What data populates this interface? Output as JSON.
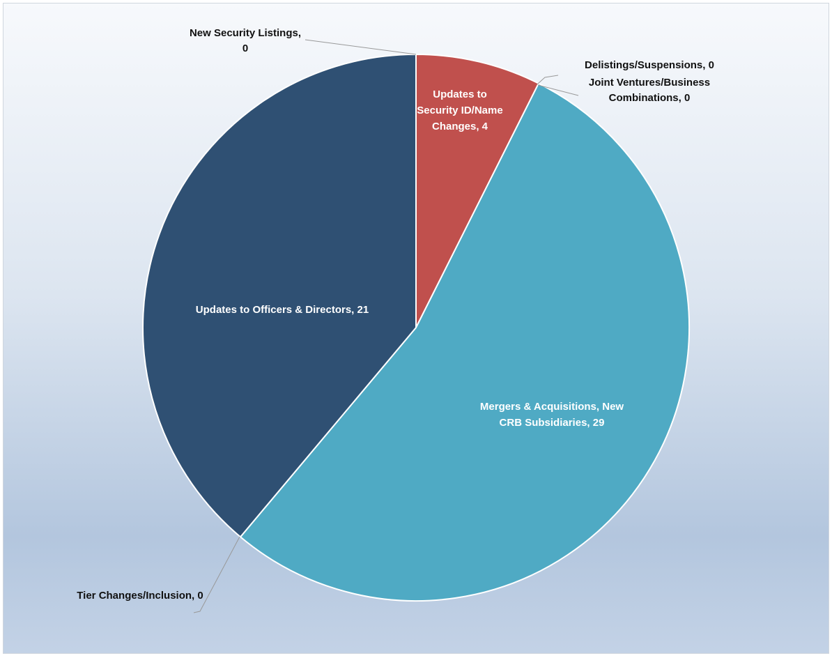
{
  "chart_data": {
    "type": "pie",
    "title": "",
    "slices": [
      {
        "label": "New Security Listings",
        "value": 0,
        "color": "#2f5073"
      },
      {
        "label": "Updates to Security ID/Name Changes",
        "value": 4,
        "color": "#c0504d"
      },
      {
        "label": "Delistings/Suspensions",
        "value": 0,
        "color": "#4aacc6"
      },
      {
        "label": "Joint Ventures/Business Combinations",
        "value": 0,
        "color": "#4aacc6"
      },
      {
        "label": "Mergers & Acquisitions, New CRB Subsidiaries",
        "value": 29,
        "color": "#4faac4"
      },
      {
        "label": "Tier Changes/Inclusion",
        "value": 0,
        "color": "#2f5073"
      },
      {
        "label": "Updates to Officers & Directors",
        "value": 21,
        "color": "#2f5073"
      }
    ],
    "data_labels": [
      {
        "lines": [
          "New Security Listings,",
          "0"
        ]
      },
      {
        "lines": [
          "Updates to",
          "Security ID/Name",
          "Changes, 4"
        ]
      },
      {
        "lines": [
          "Delistings/Suspensions, 0"
        ]
      },
      {
        "lines": [
          "Joint Ventures/Business",
          "Combinations, 0"
        ]
      },
      {
        "lines": [
          "Mergers & Acquisitions, New",
          "CRB Subsidiaries, 29"
        ]
      },
      {
        "lines": [
          "Tier Changes/Inclusion, 0"
        ]
      },
      {
        "lines": [
          "Updates to Officers & Directors, 21"
        ]
      }
    ],
    "legend": "none",
    "colors": {
      "slice_border": "#ffffff",
      "leader_line": "#999999"
    }
  }
}
